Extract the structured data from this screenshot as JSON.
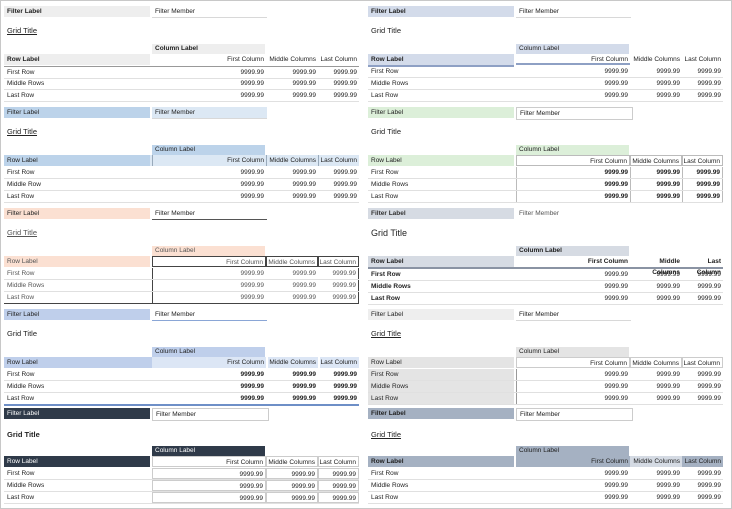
{
  "labels": {
    "filter_label": "Filter Label",
    "filter_member": "Filter Member",
    "grid_title": "Grid Title",
    "column_label": "Column Label",
    "row_label": "Row Label",
    "first_column": "First Column",
    "middle_columns": "Middle Columns",
    "last_column": "Last Column",
    "first_row": "First Row",
    "middle_rows": "Middle Rows",
    "middle_row": "Middle Row",
    "last_row": "Last Row",
    "value": "9999.99"
  }
}
